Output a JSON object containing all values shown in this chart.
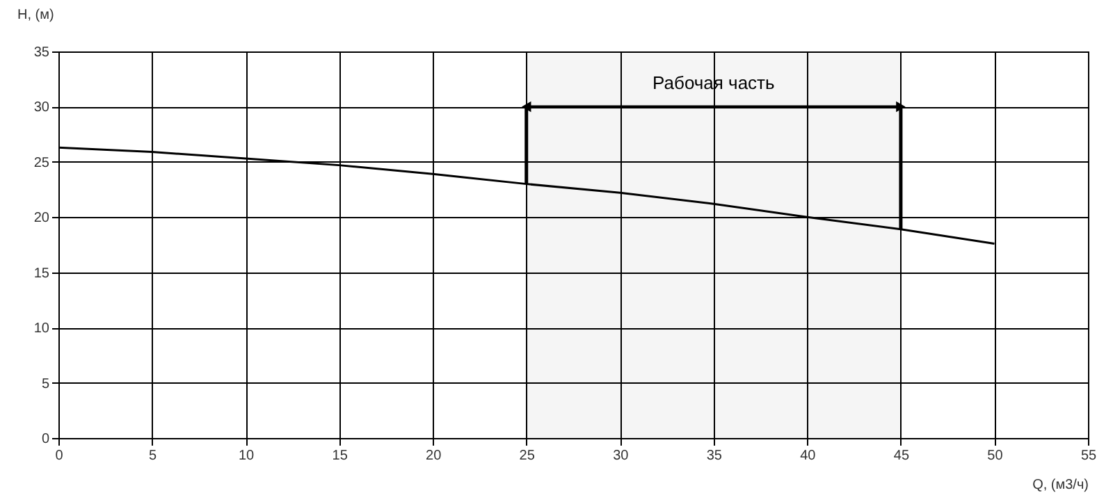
{
  "chart_data": {
    "type": "line",
    "xlabel": "Q, (м3/ч)",
    "ylabel": "H, (м)",
    "x": [
      0,
      5,
      10,
      15,
      20,
      25,
      30,
      35,
      40,
      45,
      50
    ],
    "series": [
      {
        "color": "#000000",
        "values": [
          26.3,
          25.9,
          25.3,
          24.7,
          23.9,
          23.0,
          22.2,
          21.2,
          20.0,
          18.9,
          17.6
        ]
      }
    ],
    "xlim": [
      0,
      55
    ],
    "xticks": [
      0,
      5,
      10,
      15,
      20,
      25,
      30,
      35,
      40,
      45,
      50,
      55
    ],
    "ylim": [
      0,
      35
    ],
    "yticks": [
      0,
      5,
      10,
      15,
      20,
      25,
      30,
      35
    ],
    "grid": true,
    "bands": [
      {
        "axis": "x",
        "from": 25,
        "to": 45,
        "label": "Рабочая часть"
      }
    ]
  }
}
